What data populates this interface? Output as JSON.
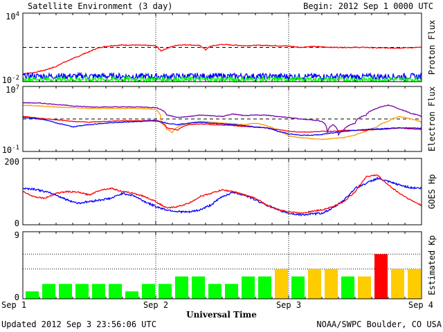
{
  "header": {
    "title": "Satellite Environment (3 day)",
    "begin": "Begin:  2012 Sep 1 0000 UTC"
  },
  "footer": {
    "updated": "Updated 2012 Sep  3 23:56:06 UTC",
    "credit": "NOAA/SWPC Boulder, CO USA"
  },
  "colors": {
    "proton_high": "#ff0000",
    "proton_mid": "#0000ff",
    "proton_low": "#00ff00",
    "kp_green": "#00ff00",
    "kp_yellow": "#ffcc00",
    "kp_red": "#ff0000",
    "goes13": "#0000ff",
    "goes15": "#ff0000",
    "elec_a": "#ff9900",
    "elec_b": "#7700aa",
    "elec_c": "#ff0000",
    "elec_d": "#0000ff"
  },
  "chart_data": [
    {
      "type": "line",
      "id": "proton",
      "ylabel": "Proton Flux",
      "scale": "log",
      "ylim": [
        0.01,
        10000
      ],
      "ytick_labels": [
        {
          "base": "10",
          "exp": "4"
        },
        {
          "base": "10",
          "exp": "-2"
        }
      ],
      "threshold": 10,
      "xlim": [
        0,
        72
      ],
      "series": [
        {
          "color_key": "proton_high",
          "x": [
            0,
            2,
            4,
            6,
            8,
            10,
            12,
            14,
            16,
            18,
            20,
            22,
            24,
            24.5,
            25,
            26,
            27,
            28,
            30,
            32,
            33,
            34,
            36,
            38,
            40,
            42,
            44,
            46,
            48,
            50,
            52,
            54,
            56,
            58,
            60,
            62,
            64,
            66,
            68,
            70,
            72
          ],
          "y": [
            0.05,
            0.06,
            0.1,
            0.2,
            0.6,
            1.5,
            4,
            10,
            14,
            16,
            16,
            15,
            14,
            8,
            5,
            8,
            12,
            16,
            17,
            14,
            6,
            13,
            18,
            16,
            14,
            15,
            15,
            14,
            13,
            10,
            12,
            11,
            10,
            10,
            10,
            10,
            9,
            9,
            9,
            9.5,
            10
          ]
        },
        {
          "color_key": "proton_mid",
          "noise": 0.55,
          "x": [
            0,
            12,
            24,
            36,
            48,
            60,
            72
          ],
          "y": [
            0.03,
            0.03,
            0.028,
            0.03,
            0.028,
            0.027,
            0.028
          ]
        },
        {
          "color_key": "proton_low",
          "noise": 0.45,
          "x": [
            0,
            12,
            24,
            36,
            48,
            60,
            72
          ],
          "y": [
            0.017,
            0.016,
            0.016,
            0.016,
            0.016,
            0.015,
            0.016
          ]
        }
      ]
    },
    {
      "type": "line",
      "id": "electron",
      "ylabel": "Electron Flux",
      "scale": "log",
      "ylim": [
        0.1,
        10000000
      ],
      "ytick_labels": [
        {
          "base": "10",
          "exp": "7"
        },
        {
          "base": "10",
          "exp": "-1"
        }
      ],
      "threshold": 1000,
      "xlim": [
        0,
        72
      ],
      "series": [
        {
          "color_key": "elec_a",
          "x": [
            0,
            3,
            6,
            9,
            12,
            15,
            18,
            21,
            24,
            25,
            26,
            27,
            28,
            30,
            32,
            34,
            36,
            38,
            40,
            42,
            44,
            46,
            48,
            50,
            52,
            54,
            56,
            58,
            60,
            62,
            64,
            66,
            68,
            70,
            72
          ],
          "y": [
            50000,
            40000,
            30000,
            25000,
            20000,
            20000,
            20000,
            20000,
            15000,
            300,
            50,
            20,
            100,
            300,
            500,
            400,
            300,
            250,
            200,
            300,
            150,
            30,
            8,
            5,
            4,
            3,
            4,
            5,
            10,
            30,
            100,
            500,
            2000,
            1000,
            400
          ]
        },
        {
          "color_key": "elec_b",
          "x": [
            0,
            3,
            6,
            9,
            12,
            15,
            18,
            21,
            24,
            26,
            28,
            30,
            32,
            34,
            36,
            38,
            40,
            42,
            44,
            46,
            48,
            50,
            52,
            54,
            55,
            56,
            57,
            58,
            60,
            62,
            64,
            66,
            68,
            70,
            72
          ],
          "y": [
            100000,
            90000,
            60000,
            40000,
            30000,
            30000,
            30000,
            30000,
            25000,
            3000,
            1500,
            2000,
            3000,
            2500,
            2000,
            4000,
            2500,
            3000,
            3000,
            2000,
            1500,
            1000,
            800,
            500,
            20,
            200,
            10,
            50,
            300,
            3000,
            20000,
            50000,
            15000,
            5000,
            2000
          ]
        },
        {
          "color_key": "elec_c",
          "x": [
            0,
            3,
            6,
            9,
            12,
            15,
            18,
            21,
            24,
            26,
            28,
            30,
            32,
            34,
            36,
            38,
            40,
            42,
            44,
            46,
            48,
            50,
            52,
            54,
            56,
            58,
            60,
            62,
            64,
            66,
            68,
            70,
            72
          ],
          "y": [
            2000,
            1200,
            800,
            500,
            400,
            500,
            600,
            600,
            700,
            80,
            40,
            200,
            250,
            200,
            180,
            150,
            120,
            100,
            80,
            50,
            30,
            25,
            25,
            30,
            30,
            40,
            40,
            40,
            50,
            60,
            80,
            60,
            50
          ]
        },
        {
          "color_key": "elec_d",
          "x": [
            0,
            3,
            6,
            9,
            12,
            15,
            18,
            21,
            24,
            26,
            28,
            30,
            32,
            34,
            36,
            38,
            40,
            42,
            44,
            46,
            48,
            50,
            52,
            54,
            56,
            58,
            60,
            62,
            64,
            66,
            68,
            70,
            72
          ],
          "y": [
            1500,
            1000,
            300,
            100,
            200,
            300,
            400,
            500,
            600,
            300,
            200,
            300,
            400,
            300,
            250,
            200,
            150,
            100,
            80,
            30,
            15,
            10,
            10,
            12,
            20,
            30,
            40,
            50,
            60,
            70,
            80,
            80,
            70
          ]
        }
      ]
    },
    {
      "type": "line",
      "id": "goes_hp",
      "ylabel": "GOES Hp",
      "scale": "linear",
      "ylim": [
        0,
        200
      ],
      "ytick_labels": [
        "200",
        "0"
      ],
      "xlim": [
        0,
        72
      ],
      "series": [
        {
          "color_key": "goes13",
          "noise": 3,
          "x": [
            0,
            2,
            4,
            6,
            8,
            10,
            12,
            14,
            16,
            18,
            20,
            22,
            24,
            26,
            28,
            30,
            32,
            34,
            36,
            38,
            40,
            42,
            44,
            46,
            48,
            50,
            52,
            54,
            56,
            58,
            60,
            62,
            64,
            66,
            68,
            70,
            72
          ],
          "y": [
            110,
            108,
            100,
            90,
            75,
            65,
            70,
            75,
            80,
            95,
            88,
            70,
            55,
            45,
            40,
            38,
            45,
            60,
            85,
            98,
            90,
            75,
            60,
            45,
            35,
            30,
            32,
            35,
            50,
            75,
            110,
            125,
            140,
            130,
            120,
            112,
            110
          ]
        },
        {
          "color_key": "goes15",
          "noise": 2,
          "x": [
            0,
            2,
            4,
            6,
            8,
            10,
            12,
            14,
            16,
            18,
            20,
            22,
            24,
            26,
            28,
            30,
            32,
            34,
            36,
            38,
            40,
            42,
            44,
            46,
            48,
            50,
            52,
            54,
            56,
            58,
            60,
            62,
            64,
            66,
            68,
            70,
            72
          ],
          "y": [
            100,
            85,
            80,
            95,
            100,
            98,
            90,
            105,
            110,
            100,
            95,
            85,
            70,
            50,
            55,
            65,
            85,
            95,
            105,
            100,
            90,
            80,
            60,
            45,
            40,
            35,
            40,
            45,
            55,
            70,
            100,
            145,
            150,
            120,
            95,
            75,
            58
          ]
        }
      ]
    },
    {
      "type": "bar",
      "id": "kp",
      "ylabel": "Estimated Kp",
      "ylim": [
        0,
        9
      ],
      "ytick_labels": [
        "9",
        "0"
      ],
      "bar_hours": 3,
      "values": [
        1,
        2,
        2,
        2,
        2,
        2,
        1,
        2,
        2,
        3,
        3,
        2,
        2,
        3,
        3,
        4,
        3,
        4,
        4,
        3,
        3,
        6,
        4,
        4
      ],
      "colors": [
        "kp_green",
        "kp_green",
        "kp_green",
        "kp_green",
        "kp_green",
        "kp_green",
        "kp_green",
        "kp_green",
        "kp_green",
        "kp_green",
        "kp_green",
        "kp_green",
        "kp_green",
        "kp_green",
        "kp_green",
        "kp_yellow",
        "kp_green",
        "kp_yellow",
        "kp_yellow",
        "kp_green",
        "kp_yellow",
        "kp_red",
        "kp_yellow",
        "kp_yellow"
      ],
      "dotted_levels": [
        4,
        6
      ]
    }
  ],
  "x_axis": {
    "label": "Universal Time",
    "ticks": [
      "Sep 1",
      "Sep 2",
      "Sep 3",
      "Sep 4"
    ]
  }
}
